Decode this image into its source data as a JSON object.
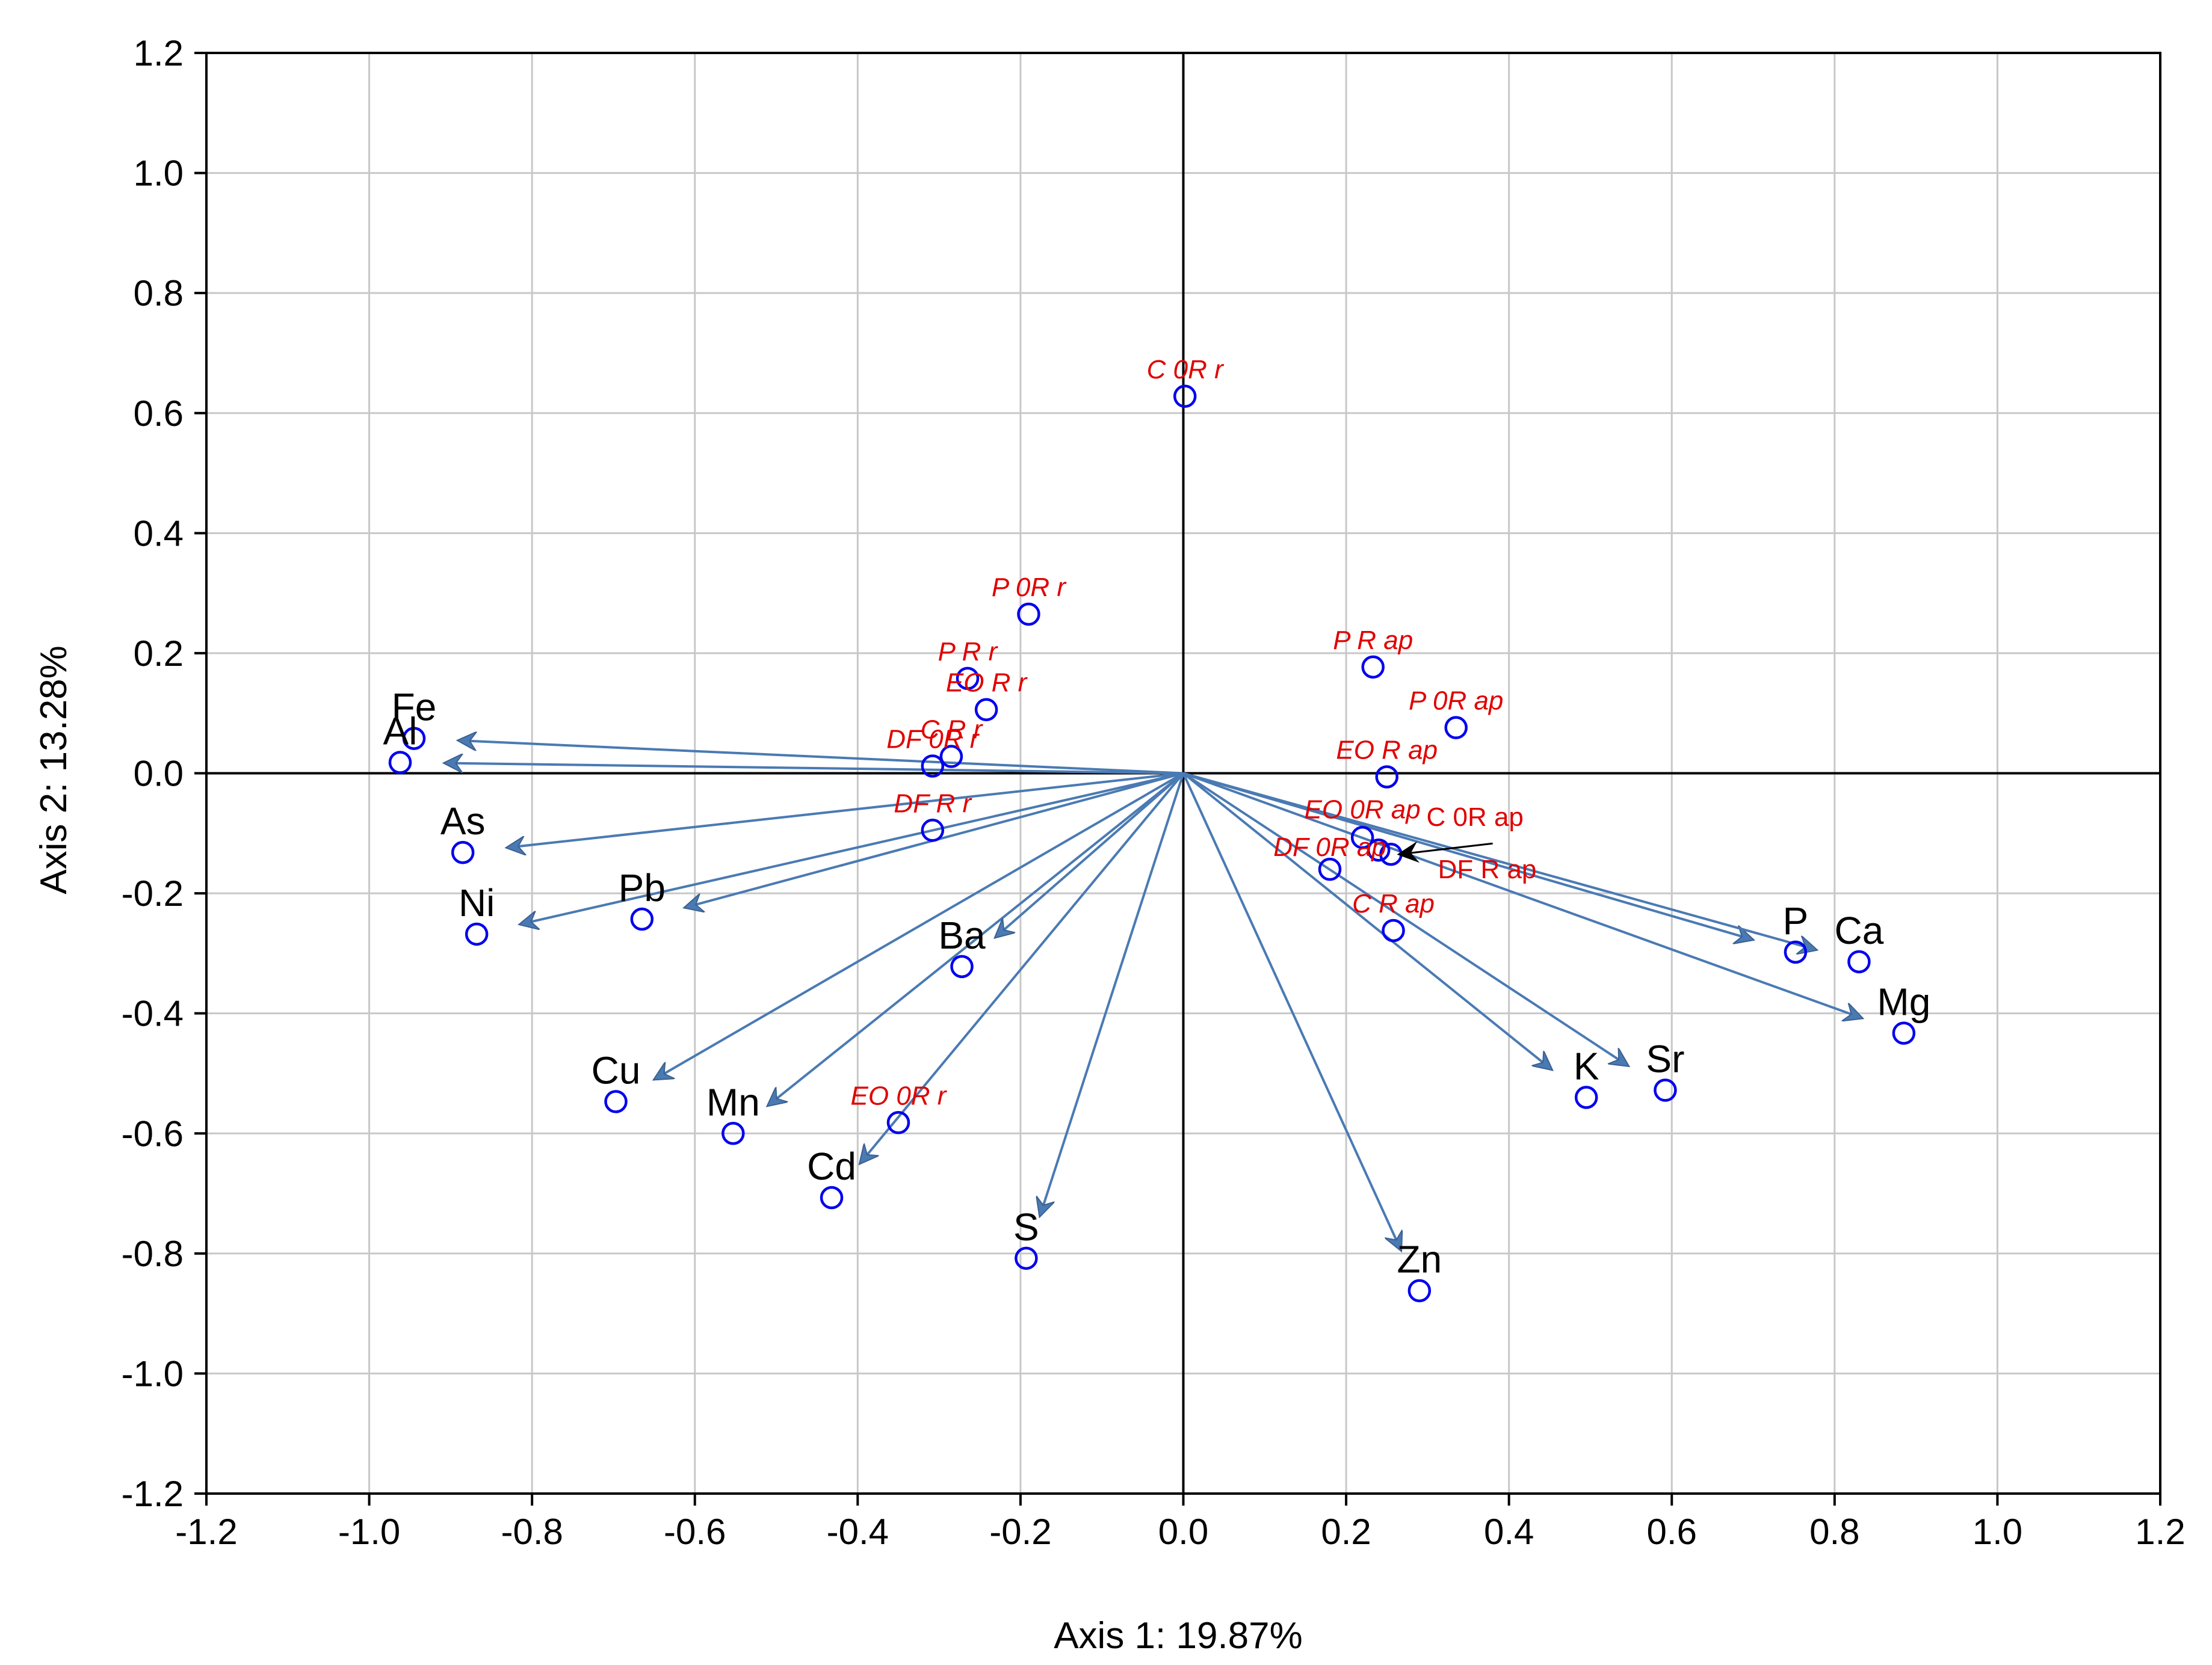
{
  "chart_data": {
    "type": "scatter",
    "subtype": "pca-biplot",
    "title": "",
    "xlabel": "Axis 1: 19.87%",
    "ylabel": "Axis 2: 13.28%",
    "xlim": [
      -1.2,
      1.2
    ],
    "ylim": [
      -1.2,
      1.2
    ],
    "xticks": [
      -1.2,
      -1.0,
      -0.8,
      -0.6,
      -0.4,
      -0.2,
      0.0,
      0.2,
      0.4,
      0.6,
      0.8,
      1.0,
      1.2
    ],
    "yticks": [
      -1.2,
      -1.0,
      -0.8,
      -0.6,
      -0.4,
      -0.2,
      0.0,
      0.2,
      0.4,
      0.6,
      0.8,
      1.0,
      1.2
    ],
    "xtick_labels": [
      "-1.2",
      "-1.0",
      "-0.8",
      "-0.6",
      "-0.4",
      "-0.2",
      "0.0",
      "0.2",
      "0.4",
      "0.6",
      "0.8",
      "1.0",
      "1.2"
    ],
    "ytick_labels": [
      "-1.2",
      "-1.0",
      "-0.8",
      "-0.6",
      "-0.4",
      "-0.2",
      "0.0",
      "0.2",
      "0.4",
      "0.6",
      "0.8",
      "1.0",
      "1.2"
    ],
    "grid": true,
    "legend": "none",
    "colors": {
      "vector": "#4a7ab3",
      "variable_label": "#000000",
      "sample_label": "#e00000",
      "point": "#0000ee"
    },
    "variables": [
      {
        "label": "Fe",
        "x": -0.945,
        "y": 0.058
      },
      {
        "label": "Al",
        "x": -0.962,
        "y": 0.018
      },
      {
        "label": "As",
        "x": -0.885,
        "y": -0.132
      },
      {
        "label": "Ni",
        "x": -0.868,
        "y": -0.268
      },
      {
        "label": "Pb",
        "x": -0.665,
        "y": -0.243
      },
      {
        "label": "Cu",
        "x": -0.697,
        "y": -0.547
      },
      {
        "label": "Mn",
        "x": -0.553,
        "y": -0.6
      },
      {
        "label": "Cd",
        "x": -0.432,
        "y": -0.707
      },
      {
        "label": "Ba",
        "x": -0.272,
        "y": -0.322
      },
      {
        "label": "S",
        "x": -0.193,
        "y": -0.808
      },
      {
        "label": "Zn",
        "x": 0.29,
        "y": -0.862
      },
      {
        "label": "K",
        "x": 0.495,
        "y": -0.54
      },
      {
        "label": "Sr",
        "x": 0.592,
        "y": -0.528
      },
      {
        "label": "P",
        "x": 0.752,
        "y": -0.298
      },
      {
        "label": "Ca",
        "x": 0.83,
        "y": -0.314
      },
      {
        "label": "Mg",
        "x": 0.885,
        "y": -0.433
      }
    ],
    "samples": [
      {
        "label": "C 0R r",
        "x": 0.002,
        "y": 0.628
      },
      {
        "label": "P 0R r",
        "x": -0.19,
        "y": 0.265
      },
      {
        "label": "P R r",
        "x": -0.265,
        "y": 0.158
      },
      {
        "label": "EO R r",
        "x": -0.242,
        "y": 0.106
      },
      {
        "label": "C R r",
        "x": -0.285,
        "y": 0.028
      },
      {
        "label": "DF 0R r",
        "x": -0.308,
        "y": 0.012
      },
      {
        "label": "DF R r",
        "x": -0.308,
        "y": -0.095
      },
      {
        "label": "EO 0R r",
        "x": -0.35,
        "y": -0.582
      },
      {
        "label": "P R ap",
        "x": 0.233,
        "y": 0.177
      },
      {
        "label": "P 0R ap",
        "x": 0.335,
        "y": 0.076
      },
      {
        "label": "EO R ap",
        "x": 0.25,
        "y": -0.006
      },
      {
        "label": "EO 0R ap",
        "x": 0.22,
        "y": -0.107
      },
      {
        "label": "C 0R ap",
        "x": 0.24,
        "y": -0.128
      },
      {
        "label": "DF R ap",
        "x": 0.255,
        "y": -0.135
      },
      {
        "label": "DF 0R ap",
        "x": 0.18,
        "y": -0.16
      },
      {
        "label": "C R ap",
        "x": 0.258,
        "y": -0.262
      }
    ]
  }
}
